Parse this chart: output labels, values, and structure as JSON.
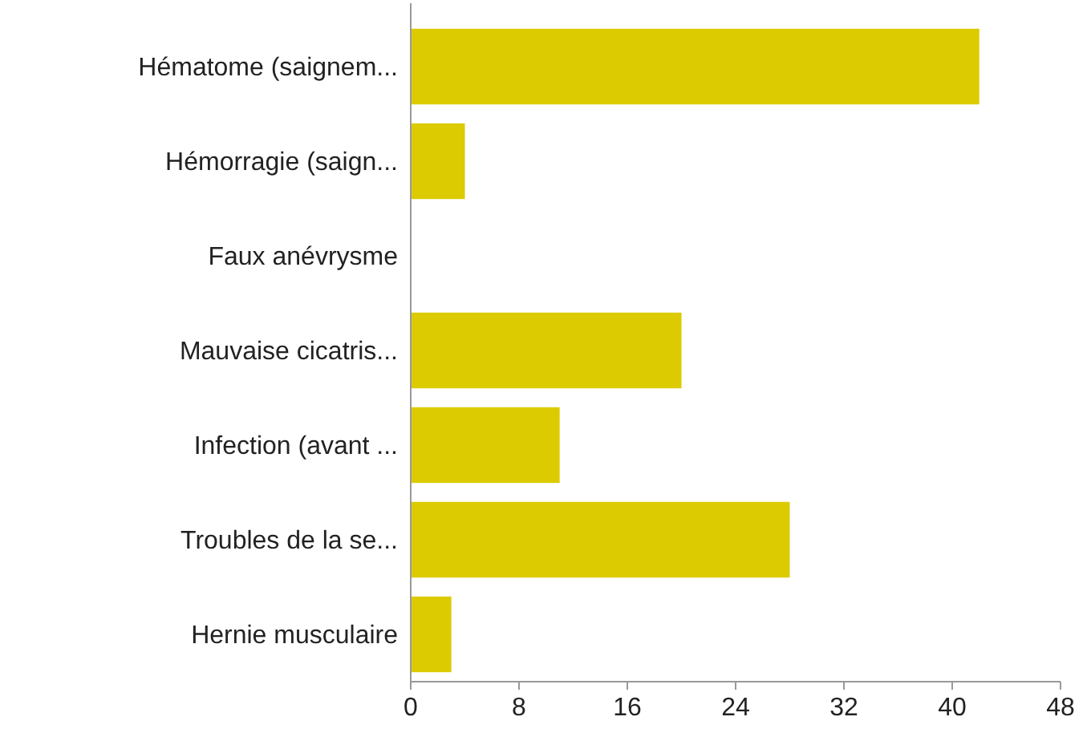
{
  "chart_data": {
    "type": "bar",
    "orientation": "horizontal",
    "categories": [
      "Hématome (saignem...",
      "Hémorragie (saign...",
      "Faux anévrysme",
      "Mauvaise cicatris...",
      "Infection (avant ...",
      "Troubles de la se...",
      "Hernie musculaire"
    ],
    "values": [
      42,
      4,
      0,
      20,
      11,
      28,
      3
    ],
    "color": "#dccb00",
    "xlim": [
      0,
      48
    ],
    "xticks": [
      0,
      8,
      16,
      24,
      32,
      40,
      48
    ],
    "grid": false
  }
}
